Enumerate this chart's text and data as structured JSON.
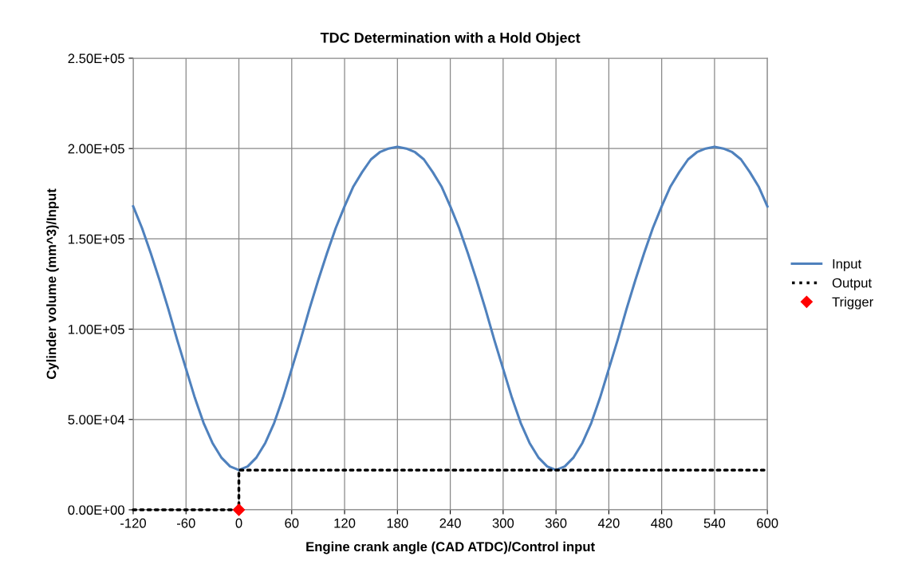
{
  "chart_data": {
    "type": "line",
    "title": "TDC Determination with a Hold Object",
    "xlabel": "Engine crank angle (CAD ATDC)/Control input",
    "ylabel": "Cylinder volume (mm^3)/Input",
    "xlim": [
      -120,
      600
    ],
    "xticks": [
      -120,
      -60,
      0,
      60,
      120,
      180,
      240,
      300,
      360,
      420,
      480,
      540,
      600
    ],
    "ylim": [
      0,
      250000
    ],
    "yticks": [
      {
        "value": 0,
        "label": "0.00E+00"
      },
      {
        "value": 50000,
        "label": "5.00E+04"
      },
      {
        "value": 100000,
        "label": "1.00E+05"
      },
      {
        "value": 150000,
        "label": "1.50E+05"
      },
      {
        "value": 200000,
        "label": "2.00E+05"
      },
      {
        "value": 250000,
        "label": "2.50E+05"
      }
    ],
    "grid": true,
    "legend": "right",
    "series": [
      {
        "name": "Input",
        "color": "#4f81bd",
        "line_style": "solid",
        "marker": "none",
        "x": [
          -120,
          -110,
          -100,
          -90,
          -80,
          -70,
          -60,
          -50,
          -40,
          -30,
          -20,
          -10,
          0,
          10,
          20,
          30,
          40,
          50,
          60,
          70,
          80,
          90,
          100,
          110,
          120,
          130,
          140,
          150,
          160,
          170,
          180,
          190,
          200,
          210,
          220,
          230,
          240,
          250,
          260,
          270,
          280,
          290,
          300,
          310,
          320,
          330,
          340,
          350,
          360,
          370,
          380,
          390,
          400,
          410,
          420,
          430,
          440,
          450,
          460,
          470,
          480,
          490,
          500,
          510,
          520,
          530,
          540,
          550,
          560,
          570,
          580,
          590,
          600
        ],
        "values": [
          168000,
          156000,
          142000,
          127000,
          111000,
          94000,
          78000,
          62000,
          48000,
          37000,
          29000,
          24000,
          22000,
          24000,
          29000,
          37000,
          48000,
          62000,
          78000,
          94000,
          111000,
          127000,
          142000,
          156000,
          168000,
          179000,
          187000,
          194000,
          198000,
          200000,
          201000,
          200000,
          198000,
          194000,
          187000,
          179000,
          168000,
          156000,
          142000,
          127000,
          111000,
          94000,
          78000,
          62000,
          48000,
          37000,
          29000,
          24000,
          22000,
          24000,
          29000,
          37000,
          48000,
          62000,
          78000,
          94000,
          111000,
          127000,
          142000,
          156000,
          168000,
          179000,
          187000,
          194000,
          198000,
          200000,
          201000,
          200000,
          198000,
          194000,
          187000,
          179000,
          168000
        ]
      },
      {
        "name": "Output",
        "color": "#000000",
        "line_style": "dotted",
        "marker": "none",
        "x": [
          -120,
          0,
          0,
          600
        ],
        "values": [
          0,
          0,
          22000,
          22000
        ]
      },
      {
        "name": "Trigger",
        "type": "scatter",
        "color": "#ff0000",
        "marker": "diamond",
        "x": [
          0
        ],
        "values": [
          0
        ]
      }
    ]
  }
}
